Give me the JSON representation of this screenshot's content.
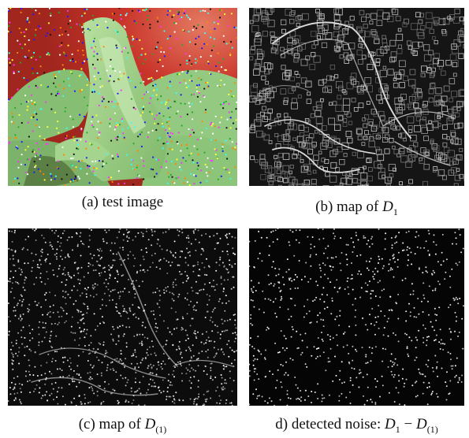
{
  "panels": [
    {
      "id": "a",
      "caption_prefix": "(a) test image",
      "caption_math": "",
      "caption_sub": "",
      "caption_mid": "",
      "caption_math2": "",
      "caption_sub2": ""
    },
    {
      "id": "b",
      "caption_prefix": "(b) map of ",
      "caption_math": "D",
      "caption_sub": "1",
      "caption_mid": "",
      "caption_math2": "",
      "caption_sub2": ""
    },
    {
      "id": "c",
      "caption_prefix": "(c) map of ",
      "caption_math": "D",
      "caption_sub": "(1)",
      "caption_mid": "",
      "caption_math2": "",
      "caption_sub2": ""
    },
    {
      "id": "d",
      "caption_prefix": "d) detected noise: ",
      "caption_math": "D",
      "caption_sub": "1",
      "caption_mid": " − ",
      "caption_math2": "D",
      "caption_sub2": "(1)"
    }
  ],
  "colors": {
    "red_bg": "#c9352a",
    "green_leaf": "#9fd08a",
    "dark_bg": "#0d0d0d",
    "edge": "#bfbfbf"
  }
}
